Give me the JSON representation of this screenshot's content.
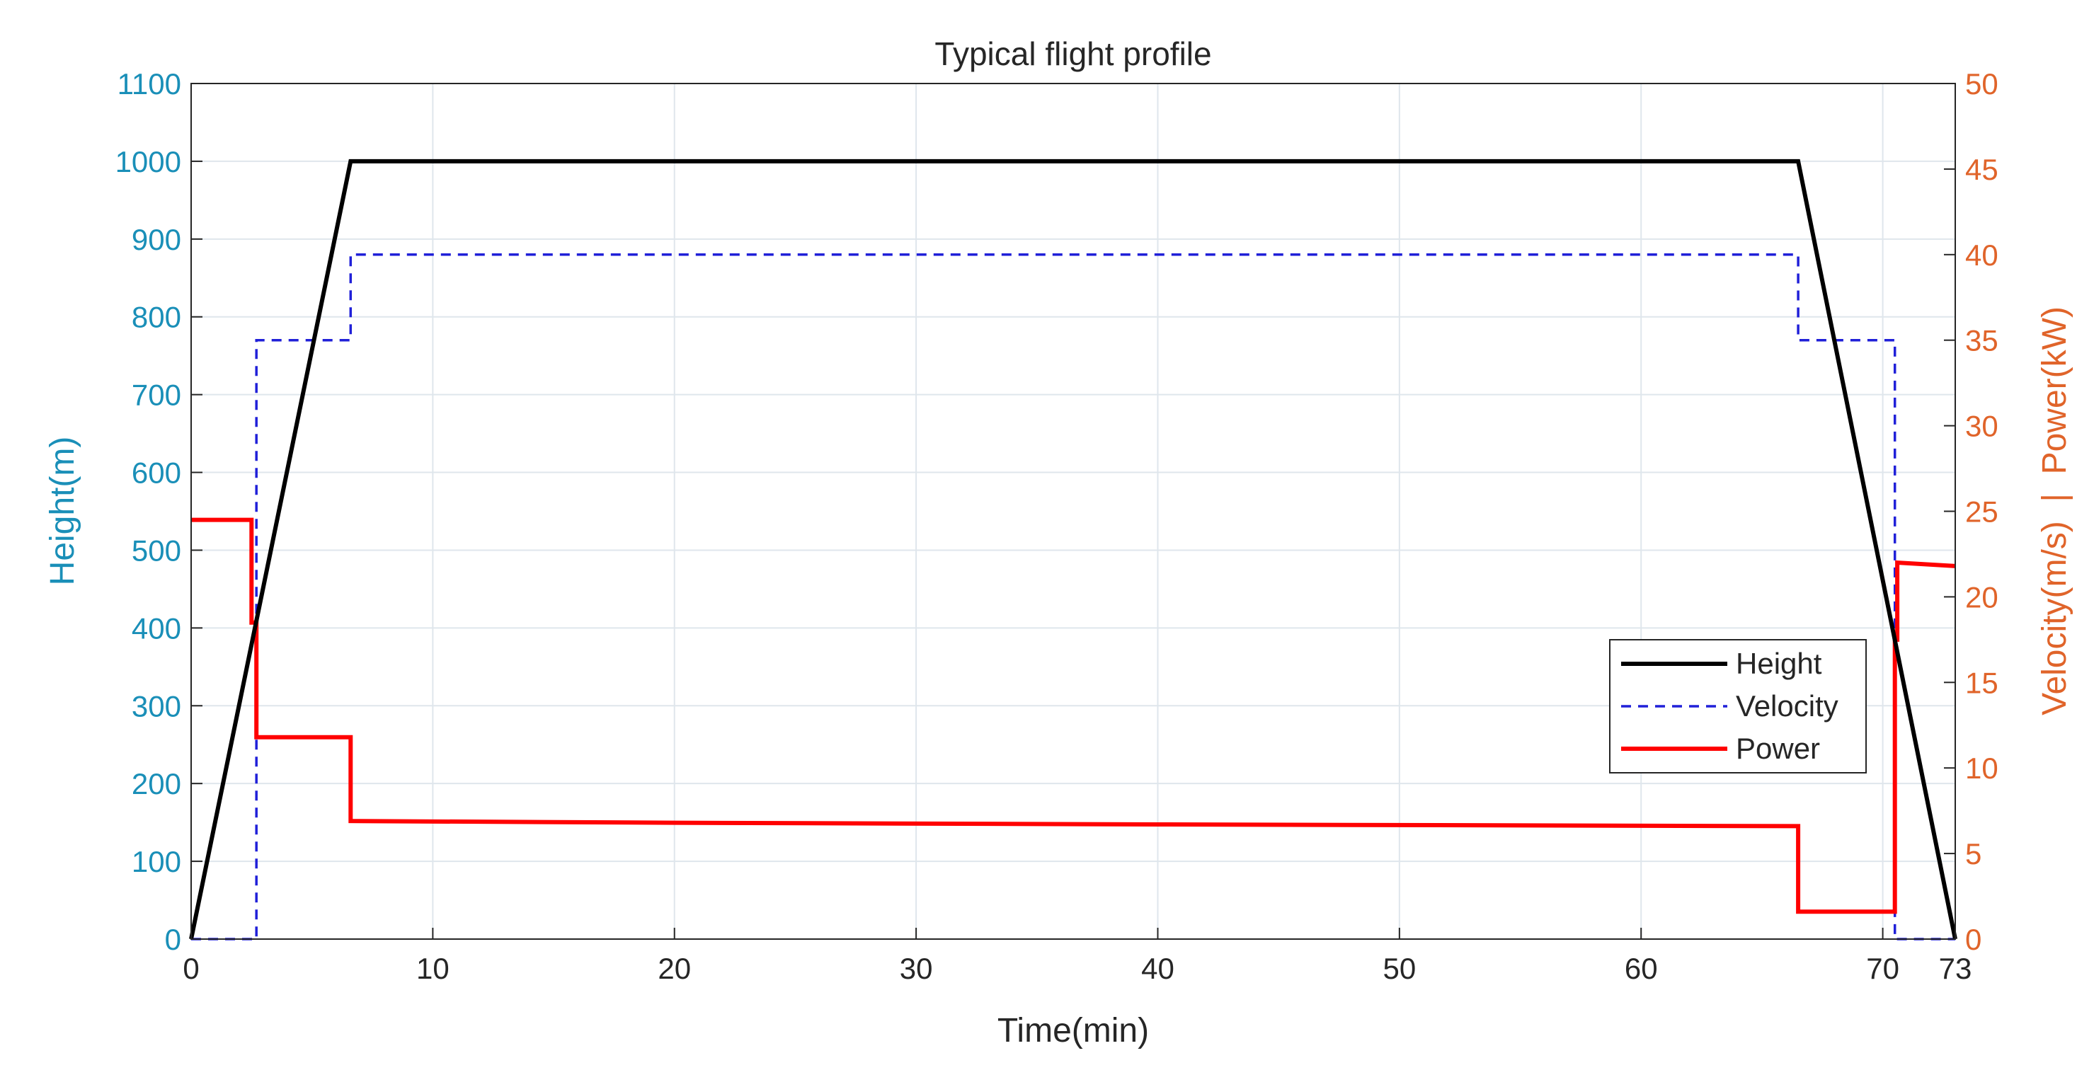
{
  "chart_data": {
    "type": "line",
    "title": "Typical flight profile",
    "xlabel": "Time(min)",
    "ylabel_left": "Height(m)",
    "ylabel_right": "Velocity(m/s)  |  Power(kW)",
    "xlim": [
      0,
      73
    ],
    "ylim_left": [
      0,
      1100
    ],
    "ylim_right": [
      0,
      50
    ],
    "x_ticks": [
      0,
      10,
      20,
      30,
      40,
      50,
      60,
      70,
      73
    ],
    "y_ticks_left": [
      0,
      100,
      200,
      300,
      400,
      500,
      600,
      700,
      800,
      900,
      1000,
      1100
    ],
    "y_ticks_right": [
      0,
      5,
      10,
      15,
      20,
      25,
      30,
      35,
      40,
      45,
      50
    ],
    "grid": true,
    "legend_position": "lower-right",
    "colors": {
      "height": "#000000",
      "velocity": "#2020d8",
      "power": "#ff0000",
      "left_axis": "#1a8fb8",
      "right_axis": "#e0642a",
      "grid": "#dfe6ec"
    },
    "series": [
      {
        "name": "Height",
        "axis": "left",
        "style": "solid",
        "points": [
          [
            0,
            0
          ],
          [
            6.6,
            1000
          ],
          [
            66.5,
            1000
          ],
          [
            73,
            0
          ]
        ]
      },
      {
        "name": "Velocity",
        "axis": "right",
        "style": "dashed",
        "points": [
          [
            0,
            0
          ],
          [
            2.7,
            0
          ],
          [
            2.7,
            35
          ],
          [
            6.6,
            35
          ],
          [
            6.6,
            40
          ],
          [
            66.5,
            40
          ],
          [
            66.5,
            35
          ],
          [
            70.5,
            35
          ],
          [
            70.5,
            0
          ],
          [
            73,
            0
          ]
        ]
      },
      {
        "name": "Power",
        "axis": "right",
        "style": "solid",
        "points": [
          [
            0,
            24.5
          ],
          [
            2.5,
            24.5
          ],
          [
            2.5,
            18.5
          ],
          [
            2.7,
            18.5
          ],
          [
            2.7,
            11.8
          ],
          [
            6.6,
            11.8
          ],
          [
            6.6,
            6.9
          ],
          [
            20,
            6.8
          ],
          [
            40,
            6.7
          ],
          [
            66.5,
            6.6
          ],
          [
            66.5,
            1.6
          ],
          [
            70.5,
            1.6
          ],
          [
            70.5,
            17.5
          ],
          [
            70.6,
            17.5
          ],
          [
            70.6,
            22
          ],
          [
            73,
            21.8
          ]
        ]
      }
    ]
  }
}
